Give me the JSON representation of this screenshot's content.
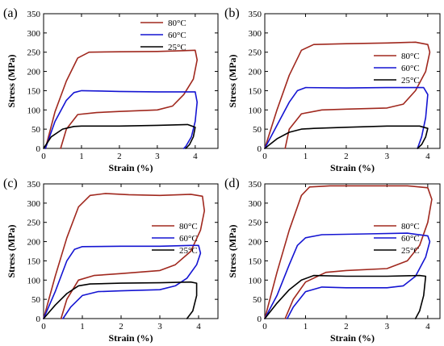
{
  "chart_data": [
    {
      "type": "line",
      "panel_label": "(a)",
      "xlabel": "Strain (%)",
      "ylabel": "Stress (MPa)",
      "xlim": [
        0,
        4.6
      ],
      "ylim": [
        0,
        350
      ],
      "xticks": [
        0,
        1,
        2,
        3,
        4
      ],
      "yticks": [
        0,
        50,
        100,
        150,
        200,
        250,
        300,
        350
      ],
      "legend_position": "top-right",
      "series": [
        {
          "name": "80°C",
          "color": "#a0281e",
          "x": [
            0.05,
            0.3,
            0.6,
            0.9,
            1.2,
            2,
            3,
            3.7,
            4,
            4.05,
            3.95,
            3.7,
            3.4,
            3.0,
            2,
            1.4,
            0.9,
            0.6,
            0.45
          ],
          "y": [
            0,
            95,
            175,
            235,
            250,
            251,
            252,
            254,
            255,
            230,
            180,
            140,
            110,
            100,
            96,
            93,
            88,
            50,
            0
          ]
        },
        {
          "name": "60°C",
          "color": "#1414d2",
          "x": [
            0.05,
            0.3,
            0.6,
            0.8,
            1.0,
            2,
            3,
            4,
            4.05,
            4.0,
            3.9,
            3.75,
            3.7
          ],
          "y": [
            0,
            70,
            125,
            145,
            150,
            148,
            147,
            147,
            120,
            70,
            30,
            5,
            0
          ]
        },
        {
          "name": "25°C",
          "color": "#000000",
          "x": [
            0.0,
            0.2,
            0.5,
            0.8,
            1.0,
            2,
            3,
            3.8,
            4.0,
            3.95,
            3.85,
            3.75
          ],
          "y": [
            0,
            30,
            50,
            57,
            58,
            58,
            60,
            62,
            55,
            30,
            10,
            0
          ]
        }
      ]
    },
    {
      "type": "line",
      "panel_label": "(b)",
      "xlabel": "Strain (%)",
      "ylabel": "Stress (MPa)",
      "xlim": [
        0,
        4.3
      ],
      "ylim": [
        0,
        350
      ],
      "xticks": [
        0,
        1,
        2,
        3,
        4
      ],
      "yticks": [
        0,
        50,
        100,
        150,
        200,
        250,
        300,
        350
      ],
      "legend_position": "right",
      "series": [
        {
          "name": "80°C",
          "color": "#a0281e",
          "x": [
            0.0,
            0.3,
            0.6,
            0.9,
            1.2,
            2,
            3,
            3.7,
            4.0,
            4.05,
            3.95,
            3.7,
            3.4,
            3.0,
            2,
            1.4,
            0.9,
            0.6,
            0.5
          ],
          "y": [
            0,
            100,
            190,
            255,
            270,
            272,
            274,
            276,
            270,
            250,
            200,
            150,
            115,
            105,
            102,
            100,
            90,
            50,
            0
          ]
        },
        {
          "name": "60°C",
          "color": "#1414d2",
          "x": [
            0.0,
            0.3,
            0.6,
            0.8,
            1.0,
            2,
            3,
            3.9,
            4.0,
            3.95,
            3.85,
            3.75
          ],
          "y": [
            0,
            60,
            120,
            150,
            158,
            157,
            158,
            158,
            140,
            80,
            30,
            0
          ]
        },
        {
          "name": "25°C",
          "color": "#000000",
          "x": [
            0.0,
            0.3,
            0.6,
            0.9,
            1.2,
            2,
            3,
            3.8,
            4.0,
            3.95,
            3.85,
            3.75
          ],
          "y": [
            0,
            25,
            42,
            50,
            52,
            55,
            58,
            58,
            52,
            30,
            10,
            0
          ]
        }
      ]
    },
    {
      "type": "line",
      "panel_label": "(c)",
      "xlabel": "Strain (%)",
      "ylabel": "Stress (MPa)",
      "xlim": [
        0,
        4.5
      ],
      "ylim": [
        0,
        350
      ],
      "xticks": [
        0,
        1,
        2,
        3,
        4
      ],
      "yticks": [
        0,
        50,
        100,
        150,
        200,
        250,
        300,
        350
      ],
      "legend_position": "right",
      "series": [
        {
          "name": "80°C",
          "color": "#a0281e",
          "x": [
            0.0,
            0.3,
            0.6,
            0.9,
            1.2,
            1.6,
            2.2,
            3,
            3.8,
            4.1,
            4.15,
            4.05,
            3.8,
            3.4,
            3.0,
            2,
            1.3,
            0.9,
            0.6,
            0.45
          ],
          "y": [
            0,
            110,
            210,
            290,
            320,
            325,
            322,
            320,
            323,
            318,
            280,
            230,
            175,
            140,
            125,
            117,
            112,
            100,
            50,
            0
          ]
        },
        {
          "name": "60°C",
          "color": "#1414d2",
          "x": [
            0.0,
            0.3,
            0.6,
            0.8,
            1.0,
            2,
            3,
            3.8,
            4.0,
            4.05,
            3.95,
            3.7,
            3.4,
            3.0,
            2,
            1.4,
            1.0,
            0.7,
            0.5
          ],
          "y": [
            0,
            70,
            150,
            180,
            187,
            188,
            188,
            190,
            190,
            170,
            140,
            105,
            85,
            75,
            72,
            70,
            60,
            30,
            0
          ]
        },
        {
          "name": "25°C",
          "color": "#000000",
          "x": [
            0.0,
            0.3,
            0.6,
            0.9,
            1.2,
            2,
            3,
            3.8,
            3.95,
            3.95,
            3.85,
            3.7
          ],
          "y": [
            0,
            35,
            65,
            85,
            90,
            92,
            93,
            95,
            92,
            60,
            20,
            0
          ]
        }
      ]
    },
    {
      "type": "line",
      "panel_label": "(d)",
      "xlabel": "Strain (%)",
      "ylabel": "Stress (MPa)",
      "xlim": [
        0,
        4.3
      ],
      "ylim": [
        0,
        350
      ],
      "xticks": [
        0,
        1,
        2,
        3,
        4
      ],
      "yticks": [
        0,
        50,
        100,
        150,
        200,
        250,
        300,
        350
      ],
      "legend_position": "right",
      "series": [
        {
          "name": "80°C",
          "color": "#a0281e",
          "x": [
            0.0,
            0.3,
            0.6,
            0.9,
            1.1,
            1.6,
            2.5,
            3.5,
            4.0,
            4.1,
            4.0,
            3.8,
            3.5,
            3.0,
            2.0,
            1.5,
            1.0,
            0.7,
            0.5
          ],
          "y": [
            0,
            120,
            230,
            320,
            342,
            345,
            345,
            345,
            340,
            310,
            250,
            190,
            150,
            130,
            125,
            120,
            95,
            50,
            0
          ]
        },
        {
          "name": "60°C",
          "color": "#1414d2",
          "x": [
            0.0,
            0.3,
            0.6,
            0.8,
            1.0,
            1.4,
            2.5,
            3.5,
            4.0,
            4.05,
            3.95,
            3.7,
            3.4,
            3.0,
            2.0,
            1.4,
            1.0,
            0.7,
            0.55
          ],
          "y": [
            0,
            60,
            140,
            190,
            210,
            218,
            220,
            222,
            215,
            200,
            160,
            110,
            85,
            80,
            80,
            82,
            70,
            30,
            0
          ]
        },
        {
          "name": "25°C",
          "color": "#000000",
          "x": [
            0.0,
            0.3,
            0.6,
            0.9,
            1.2,
            2,
            3,
            3.8,
            3.95,
            3.9,
            3.8,
            3.7
          ],
          "y": [
            0,
            40,
            75,
            100,
            112,
            110,
            110,
            112,
            110,
            60,
            20,
            0
          ]
        }
      ]
    }
  ]
}
